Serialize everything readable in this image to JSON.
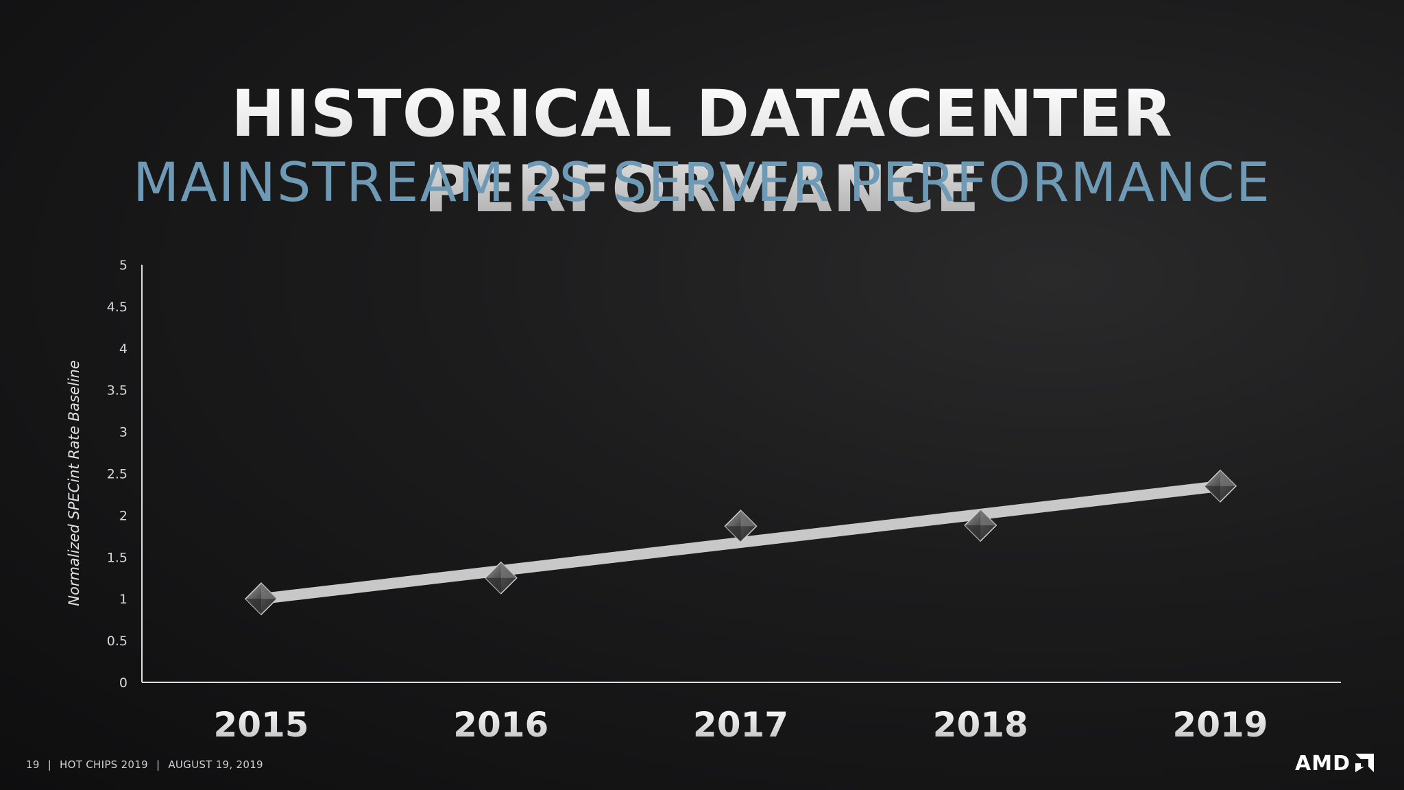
{
  "slide": {
    "title": "HISTORICAL DATACENTER PERFORMANCE",
    "subtitle": "MAINSTREAM 2S SERVER PERFORMANCE",
    "footer": {
      "page_number": "19",
      "event": "HOT CHIPS 2019",
      "date": "AUGUST 19, 2019"
    },
    "logo_text": "AMD"
  },
  "chart_data": {
    "type": "line",
    "title": "",
    "xlabel": "",
    "ylabel": "Normalized SPECint Rate Baseline",
    "categories": [
      "2015",
      "2016",
      "2017",
      "2018",
      "2019"
    ],
    "series": [
      {
        "values": [
          1.0,
          1.25,
          1.87,
          1.88,
          2.35
        ],
        "marker": "diamond"
      }
    ],
    "trendline": {
      "start": 1.0,
      "end": 2.35
    },
    "ylim": [
      0,
      5
    ],
    "yticks": [
      "0",
      "0.5",
      "1",
      "1.5",
      "2",
      "2.5",
      "3",
      "3.5",
      "4",
      "4.5",
      "5"
    ],
    "grid": false,
    "legend": "none",
    "colors": {
      "trendline": "#c8c8c8",
      "marker": "#5a5a5a",
      "axis": "#e0e0e0"
    }
  }
}
